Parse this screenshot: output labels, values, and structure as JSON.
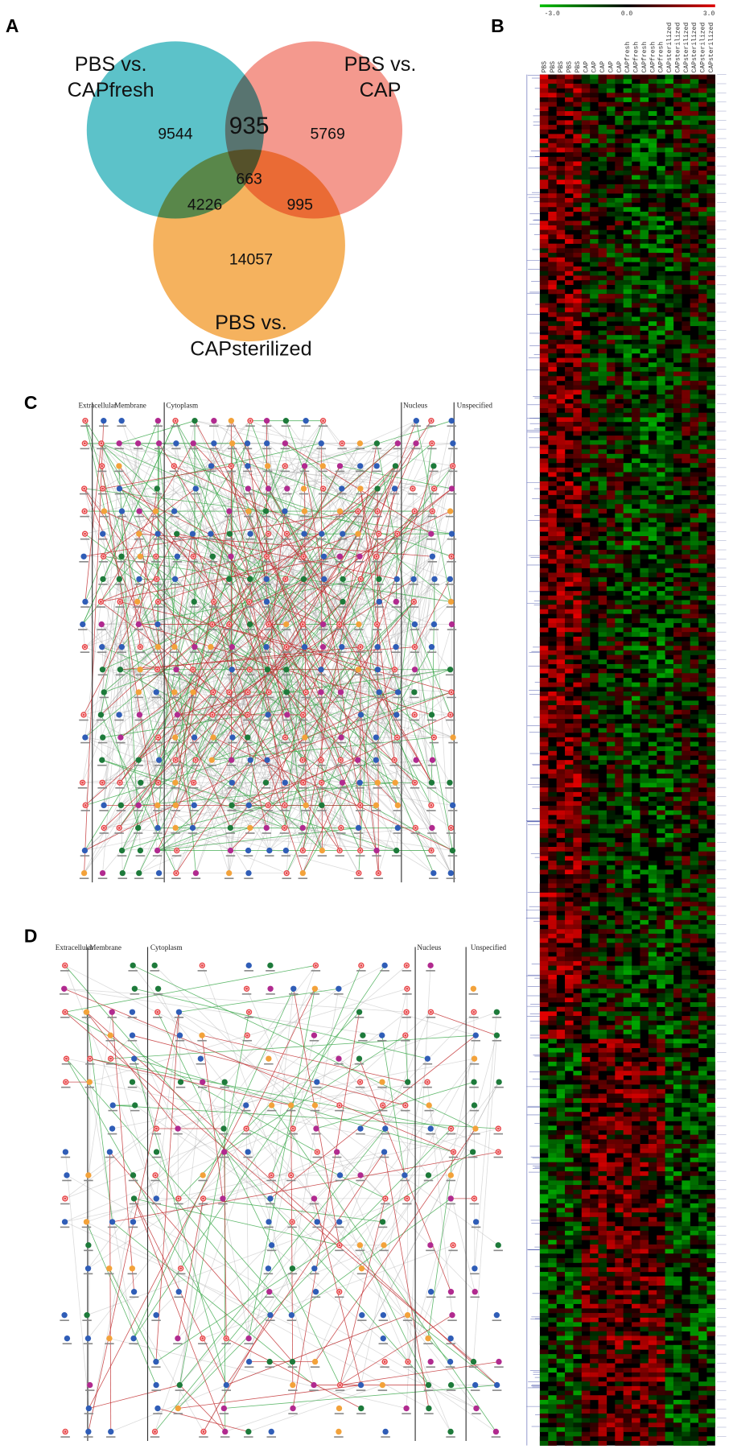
{
  "panels": [
    {
      "label": "A",
      "venn": {
        "sets": [
          {
            "line1": "PBS vs.",
            "line2": "CAPfresh"
          },
          {
            "line1": "PBS vs.",
            "line2": "CAP"
          },
          {
            "line1": "PBS vs.",
            "line2": "CAPsterilized"
          }
        ],
        "regions": {
          "capfresh_only": 9544,
          "capfresh_cap": 935,
          "cap_only": 5769,
          "all_three": 663,
          "capfresh_capsterilized": 4226,
          "cap_capsterilized": 995,
          "capsterilized_only": 14057
        }
      }
    },
    {
      "label": "B",
      "scale_ticks": [
        "-3.0",
        "0.0",
        "3.0"
      ],
      "columns": [
        "PBS",
        "PBS",
        "PBS",
        "PBS",
        "PBS",
        "CAP",
        "CAP",
        "CAP",
        "CAP",
        "CAP",
        "CAPfresh",
        "CAPfresh",
        "CAPfresh",
        "CAPfresh",
        "CAPfresh",
        "CAPsterilized",
        "CAPsterilized",
        "CAPsterilized",
        "CAPsterilized",
        "CAPsterilized",
        "CAPsterilized"
      ]
    },
    {
      "label": "C",
      "compartments": [
        "Extracellular",
        "Membrane",
        "Cytoplasm",
        "Nucleus",
        "Unspecified"
      ]
    },
    {
      "label": "D",
      "compartments": [
        "Extracellular",
        "Membrane",
        "Cytoplasm",
        "Nucleus",
        "Unspecified"
      ]
    }
  ]
}
